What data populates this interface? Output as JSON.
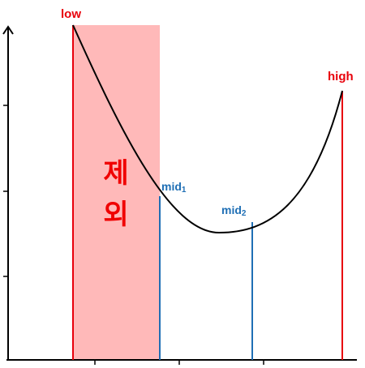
{
  "labels": {
    "low": "low",
    "high": "high",
    "mid1_main": "mid",
    "mid1_sub": "1",
    "mid2_main": "mid",
    "mid2_sub": "2",
    "excluded_line1": "제",
    "excluded_line2": "외"
  },
  "colors": {
    "axis": "#000000",
    "curve": "#000000",
    "low_high": "#e8000b",
    "mid": "#1f6fb5",
    "excluded_fill": "#ffb9b9",
    "excluded_text": "#f00000"
  }
}
